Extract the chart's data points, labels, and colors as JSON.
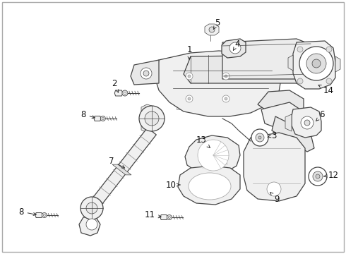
{
  "bg": "#ffffff",
  "fig_w": 4.9,
  "fig_h": 3.6,
  "dpi": 100,
  "border": "#bbbbbb",
  "line_color": "#444444",
  "light_fill": "#f8f8f8",
  "mid_fill": "#e8e8e8"
}
